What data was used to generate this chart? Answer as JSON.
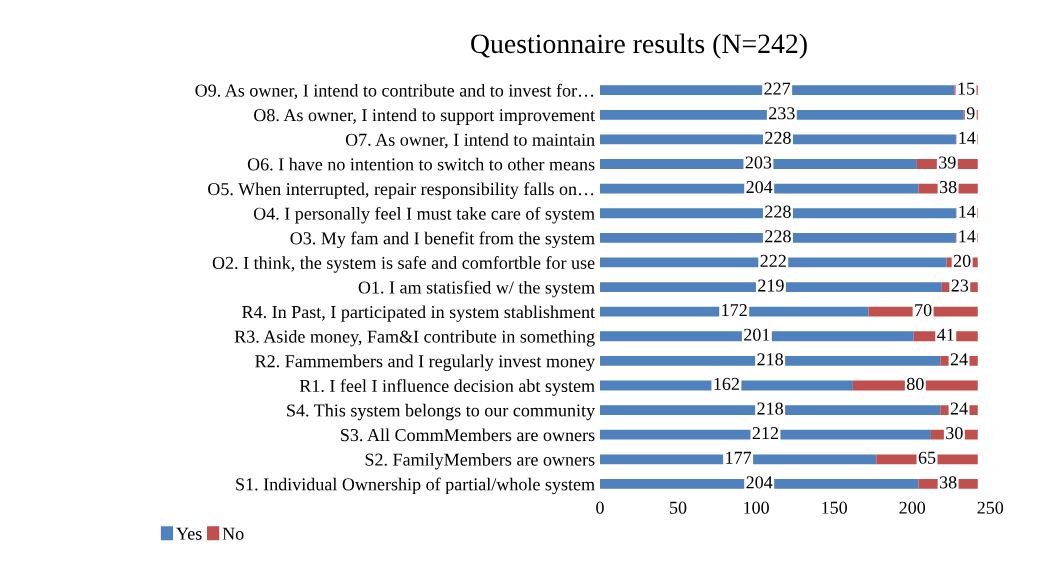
{
  "chart_data": {
    "type": "bar",
    "orientation": "horizontal",
    "stacked": true,
    "title": "Questionnaire results (N=242)",
    "categories": [
      "O9. As owner, I intend to contribute and to invest for…",
      "O8. As owner, I intend to support improvement",
      "O7. As owner, I intend to maintain",
      "O6. I have no intention to switch to other means",
      "O5. When interrupted, repair responsibility falls on…",
      "O4. I personally feel I must take care of system",
      "O3. My fam and I benefit from the system",
      "O2. I think, the system is safe and comfortble for use",
      "O1. I am statisfied w/ the system",
      "R4. In Past, I participated in system stablishment",
      "R3. Aside money, Fam&I contribute in something",
      "R2. Fammembers and I regularly invest money",
      "R1. I feel I influence decision abt system",
      "S4. This system belongs to our community",
      "S3. All CommMembers are owners",
      "S2. FamilyMembers are owners",
      "S1. Individual Ownership of partial/whole system"
    ],
    "series": [
      {
        "name": "Yes",
        "color": "#4f81bd",
        "values": [
          227,
          233,
          228,
          203,
          204,
          228,
          228,
          222,
          219,
          172,
          201,
          218,
          162,
          218,
          212,
          177,
          204
        ]
      },
      {
        "name": "No",
        "color": "#c0504d",
        "values": [
          15,
          9,
          14,
          39,
          38,
          14,
          14,
          20,
          23,
          70,
          41,
          24,
          80,
          24,
          30,
          65,
          38
        ]
      }
    ],
    "xlim": [
      0,
      250
    ],
    "xticks": [
      0,
      50,
      100,
      150,
      200,
      250
    ],
    "data_labels": true,
    "legend": "bottom left",
    "grid": false
  }
}
